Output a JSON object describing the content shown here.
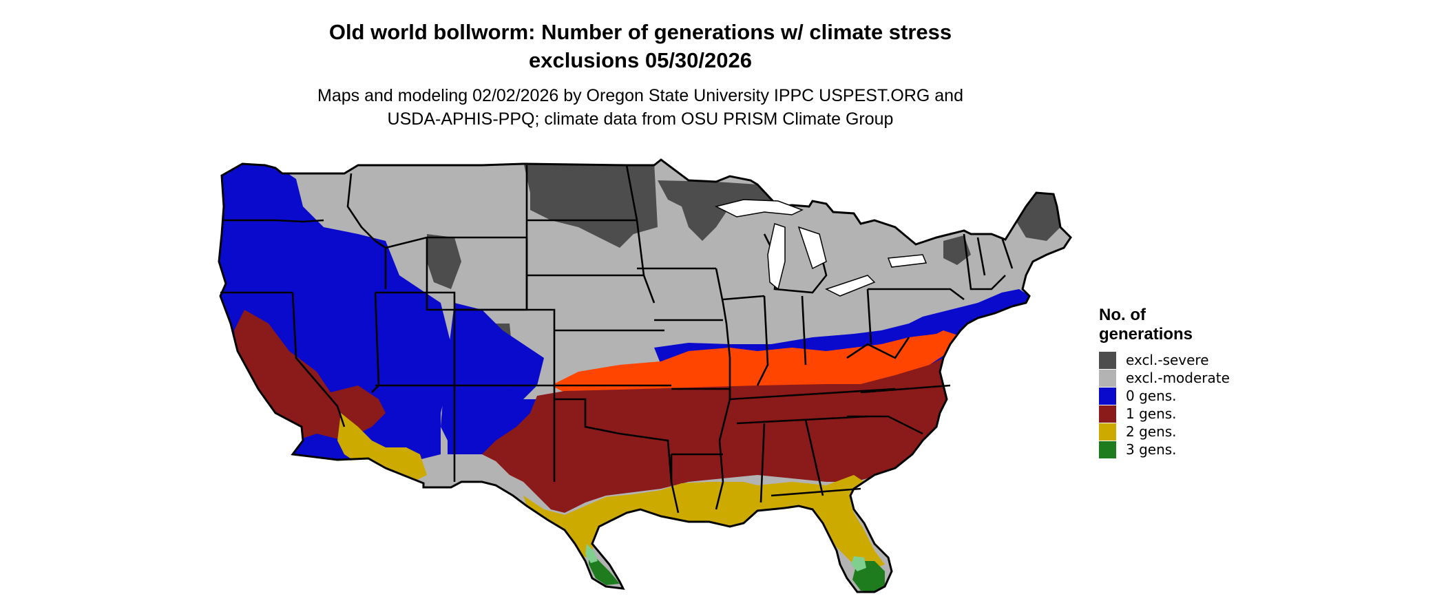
{
  "title_line1": "Old world bollworm: Number of generations w/ climate stress",
  "title_line2": "exclusions 05/30/2026",
  "subtitle_line1": "Maps and modeling 02/02/2026 by Oregon State University IPPC USPEST.ORG and",
  "subtitle_line2": "USDA-APHIS-PPQ; climate data from OSU PRISM Climate Group",
  "legend": {
    "title": "No. of\ngenerations",
    "items": [
      {
        "label": "excl.-severe",
        "color": "#4d4d4d"
      },
      {
        "label": "excl.-moderate",
        "color": "#b3b3b3"
      },
      {
        "label": "0 gens.",
        "color": "#0a0acc"
      },
      {
        "label": "1 gens.",
        "color": "#8b1a1a"
      },
      {
        "label": "2 gens.",
        "color": "#ccaa00"
      },
      {
        "label": "3 gens.",
        "color": "#1e7b1e"
      }
    ]
  },
  "colors": {
    "one_gen_high": "#ff4500",
    "three_gen_light": "#7fcf8f",
    "borders": "#000000",
    "background": "#ffffff"
  },
  "map_regions": [
    {
      "name": "excl.-severe",
      "icon": "dark-gray-region"
    },
    {
      "name": "excl.-moderate",
      "icon": "light-gray-region"
    },
    {
      "name": "0 gens.",
      "icon": "blue-region"
    },
    {
      "name": "1 gens.",
      "icon": "red-region"
    },
    {
      "name": "2 gens.",
      "icon": "yellow-region"
    },
    {
      "name": "3 gens.",
      "icon": "green-region"
    }
  ]
}
